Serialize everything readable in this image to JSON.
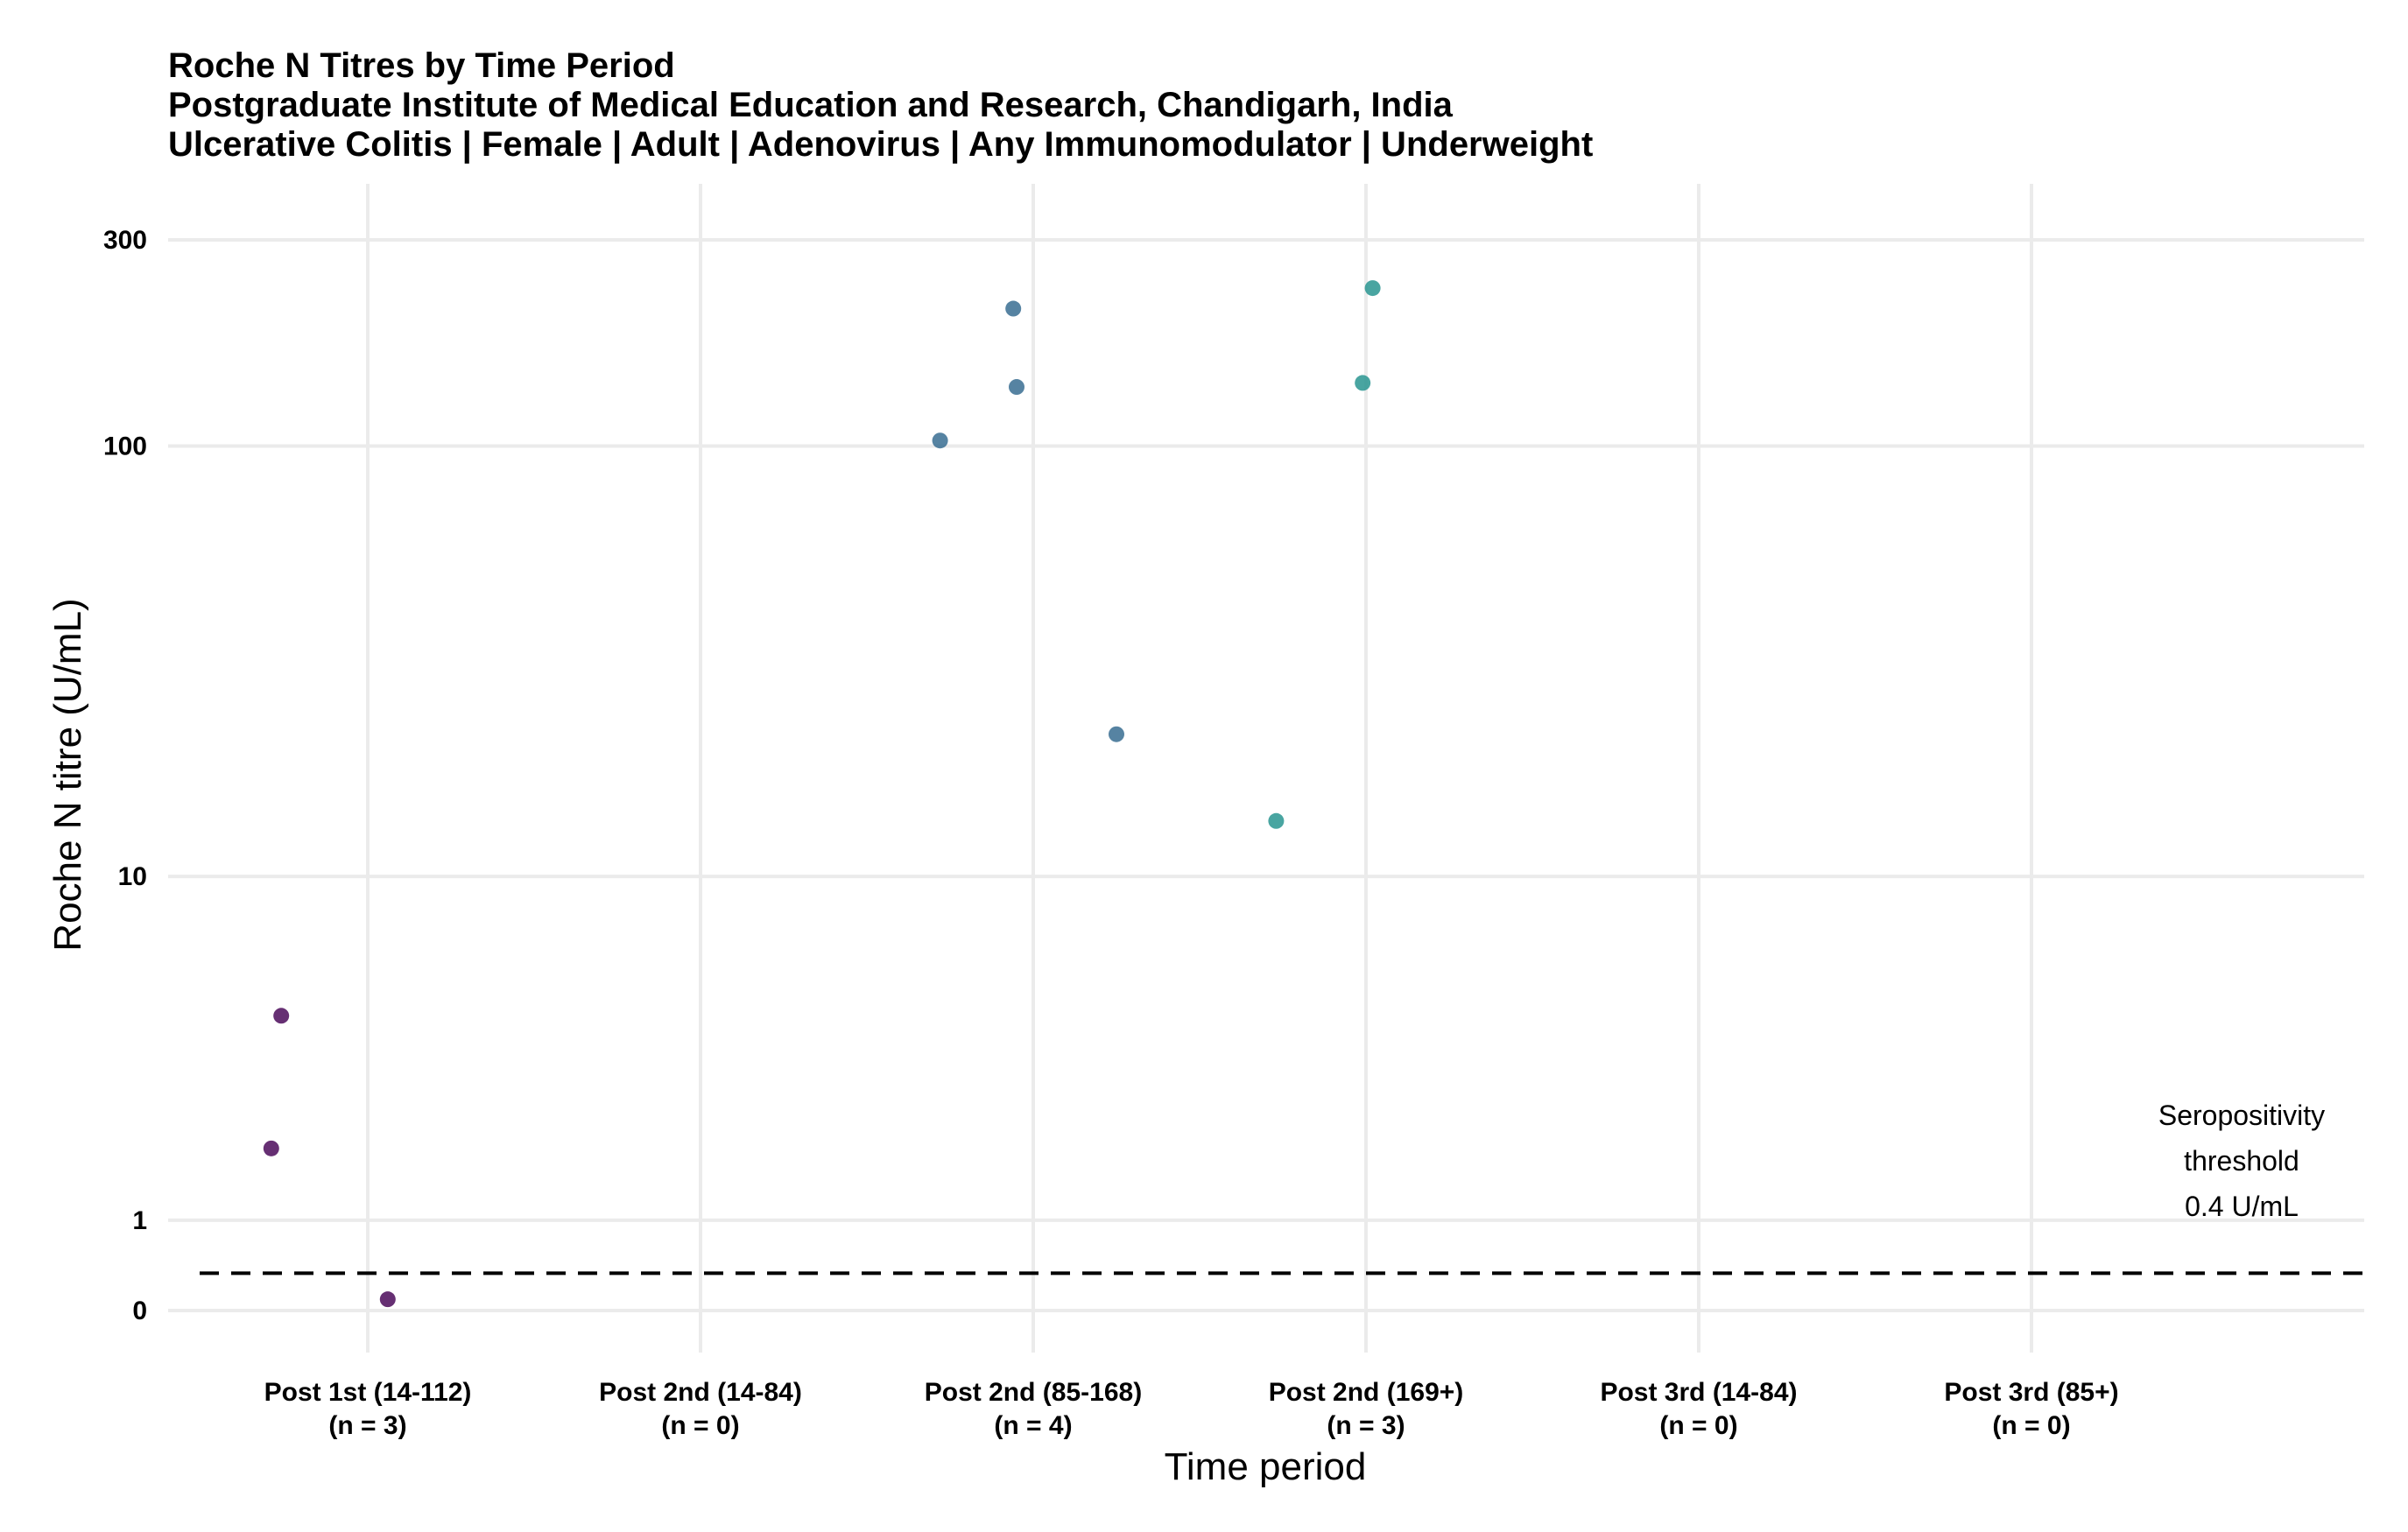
{
  "chart_data": {
    "type": "scatter",
    "title": "Roche N Titres by Time Period",
    "subtitle_lines": [
      "Postgraduate Institute of Medical Education and Research, Chandigarh, India",
      "Ulcerative Colitis | Female | Adult | Adenovirus | Any Immunomodulator | Underweight"
    ],
    "xlabel": "Time period",
    "ylabel": "Roche N titre (U/mL)",
    "y_scale": "pseudo-log",
    "ylim": [
      -0.2,
      400
    ],
    "y_ticks": [
      {
        "value": 0,
        "label": "0"
      },
      {
        "value": 1,
        "label": "1"
      },
      {
        "value": 10,
        "label": "10"
      },
      {
        "value": 100,
        "label": "100"
      },
      {
        "value": 300,
        "label": "300"
      }
    ],
    "categories": [
      {
        "label": "Post 1st (14-112)",
        "n_label": "(n = 3)"
      },
      {
        "label": "Post 2nd (14-84)",
        "n_label": "(n = 0)"
      },
      {
        "label": "Post 2nd (85-168)",
        "n_label": "(n = 4)"
      },
      {
        "label": "Post 2nd (169+)",
        "n_label": "(n = 3)"
      },
      {
        "label": "Post 3rd (14-84)",
        "n_label": "(n = 0)"
      },
      {
        "label": "Post 3rd (85+)",
        "n_label": "(n = 0)"
      }
    ],
    "points": [
      {
        "category": 0,
        "jitter": -0.26,
        "y": 4.6,
        "color": "#440154"
      },
      {
        "category": 0,
        "jitter": -0.29,
        "y": 1.95,
        "color": "#440154"
      },
      {
        "category": 0,
        "jitter": 0.06,
        "y": 0.12,
        "color": "#440154"
      },
      {
        "category": 2,
        "jitter": -0.28,
        "y": 103,
        "color": "#31688e"
      },
      {
        "category": 2,
        "jitter": -0.06,
        "y": 208,
        "color": "#31688e"
      },
      {
        "category": 2,
        "jitter": -0.05,
        "y": 137,
        "color": "#31688e"
      },
      {
        "category": 2,
        "jitter": 0.25,
        "y": 21.5,
        "color": "#31688e"
      },
      {
        "category": 3,
        "jitter": -0.27,
        "y": 13.5,
        "color": "#21918c"
      },
      {
        "category": 3,
        "jitter": -0.01,
        "y": 140,
        "color": "#21918c"
      },
      {
        "category": 3,
        "jitter": 0.02,
        "y": 232,
        "color": "#21918c"
      }
    ],
    "threshold": {
      "value": 0.4,
      "label_lines": [
        "Seropositivity",
        "threshold",
        "0.4 U/mL"
      ]
    },
    "grid": true,
    "legend": "none"
  }
}
